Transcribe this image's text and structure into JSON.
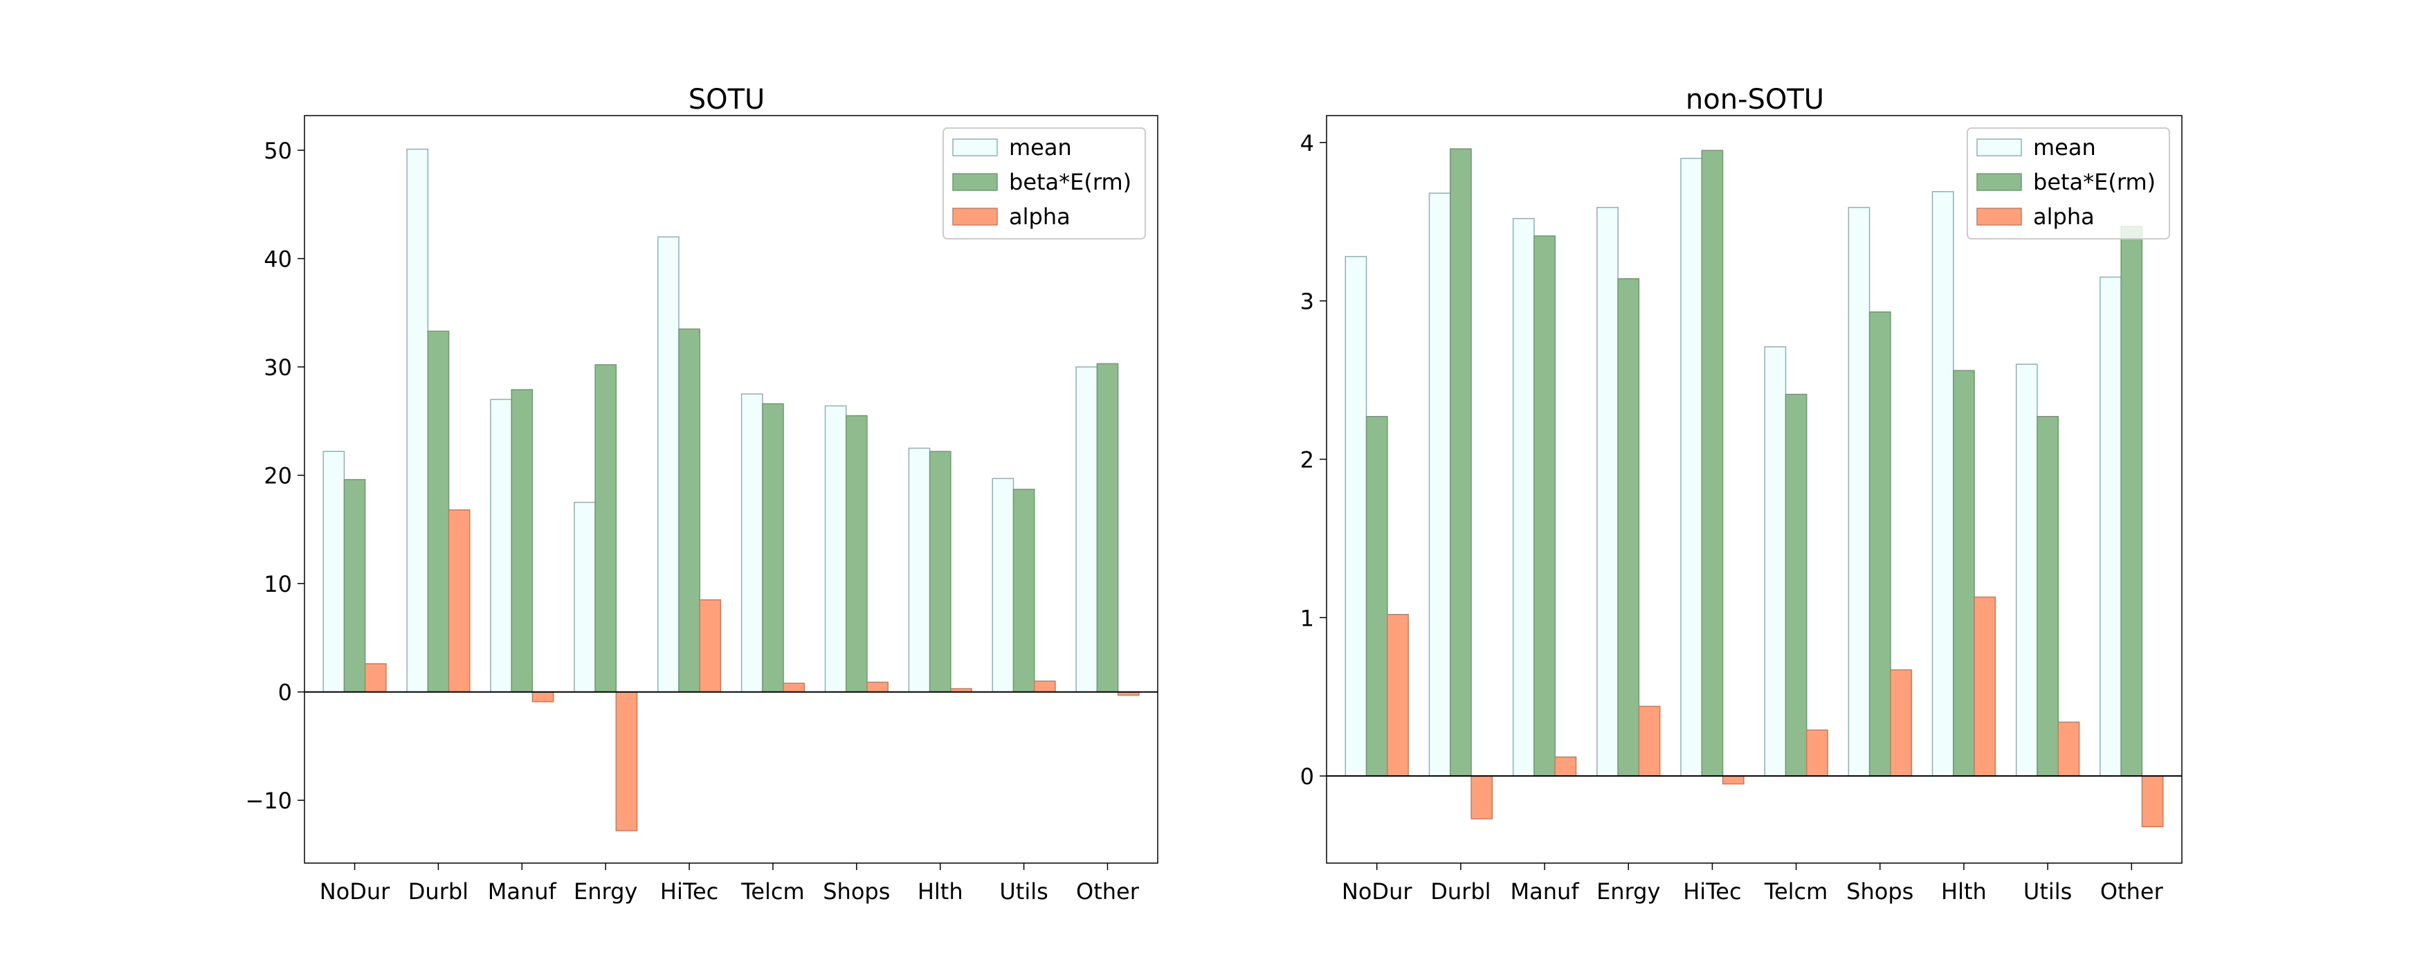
{
  "chart_data": [
    {
      "type": "bar",
      "title": "SOTU",
      "xlabel": "",
      "ylabel": "",
      "categories": [
        "NoDur",
        "Durbl",
        "Manuf",
        "Enrgy",
        "HiTec",
        "Telcm",
        "Shops",
        "Hlth",
        "Utils",
        "Other"
      ],
      "series": [
        {
          "name": "mean",
          "values": [
            22.2,
            50.1,
            27.0,
            17.5,
            42.0,
            27.5,
            26.4,
            22.5,
            19.7,
            30.0
          ],
          "color": "#f0fffe",
          "edge": "#8fb0b5"
        },
        {
          "name": "beta*E(rm)",
          "values": [
            19.6,
            33.3,
            27.9,
            30.2,
            33.5,
            26.6,
            25.5,
            22.2,
            18.7,
            30.3
          ],
          "color": "#8fbc8f",
          "edge": "#6f9a6f"
        },
        {
          "name": "alpha",
          "values": [
            2.6,
            16.8,
            -0.9,
            -12.8,
            8.5,
            0.8,
            0.9,
            0.3,
            1.0,
            -0.3
          ],
          "color": "#ffa07a",
          "edge": "#c87a5c"
        }
      ],
      "ylim": [
        -15.8,
        53.2
      ],
      "yticks": [
        -10,
        0,
        10,
        20,
        30,
        40,
        50
      ],
      "yticklabels": [
        "−10",
        "0",
        "10",
        "20",
        "30",
        "40",
        "50"
      ],
      "zero_line": true,
      "grid": false,
      "legend": "top-right"
    },
    {
      "type": "bar",
      "title": "non-SOTU",
      "xlabel": "",
      "ylabel": "",
      "categories": [
        "NoDur",
        "Durbl",
        "Manuf",
        "Enrgy",
        "HiTec",
        "Telcm",
        "Shops",
        "Hlth",
        "Utils",
        "Other"
      ],
      "series": [
        {
          "name": "mean",
          "values": [
            3.28,
            3.68,
            3.52,
            3.59,
            3.9,
            2.71,
            3.59,
            3.69,
            2.6,
            3.15
          ],
          "color": "#f0fffe",
          "edge": "#8fb0b5"
        },
        {
          "name": "beta*E(rm)",
          "values": [
            2.27,
            3.96,
            3.41,
            3.14,
            3.95,
            2.41,
            2.93,
            2.56,
            2.27,
            3.47
          ],
          "color": "#8fbc8f",
          "edge": "#6f9a6f"
        },
        {
          "name": "alpha",
          "values": [
            1.02,
            -0.27,
            0.12,
            0.44,
            -0.05,
            0.29,
            0.67,
            1.13,
            0.34,
            -0.32
          ],
          "color": "#ffa07a",
          "edge": "#c87a5c"
        }
      ],
      "ylim": [
        -0.55,
        4.17
      ],
      "yticks": [
        0,
        1,
        2,
        3,
        4
      ],
      "yticklabels": [
        "0",
        "1",
        "2",
        "3",
        "4"
      ],
      "zero_line": true,
      "grid": false,
      "legend": "top-right"
    }
  ]
}
